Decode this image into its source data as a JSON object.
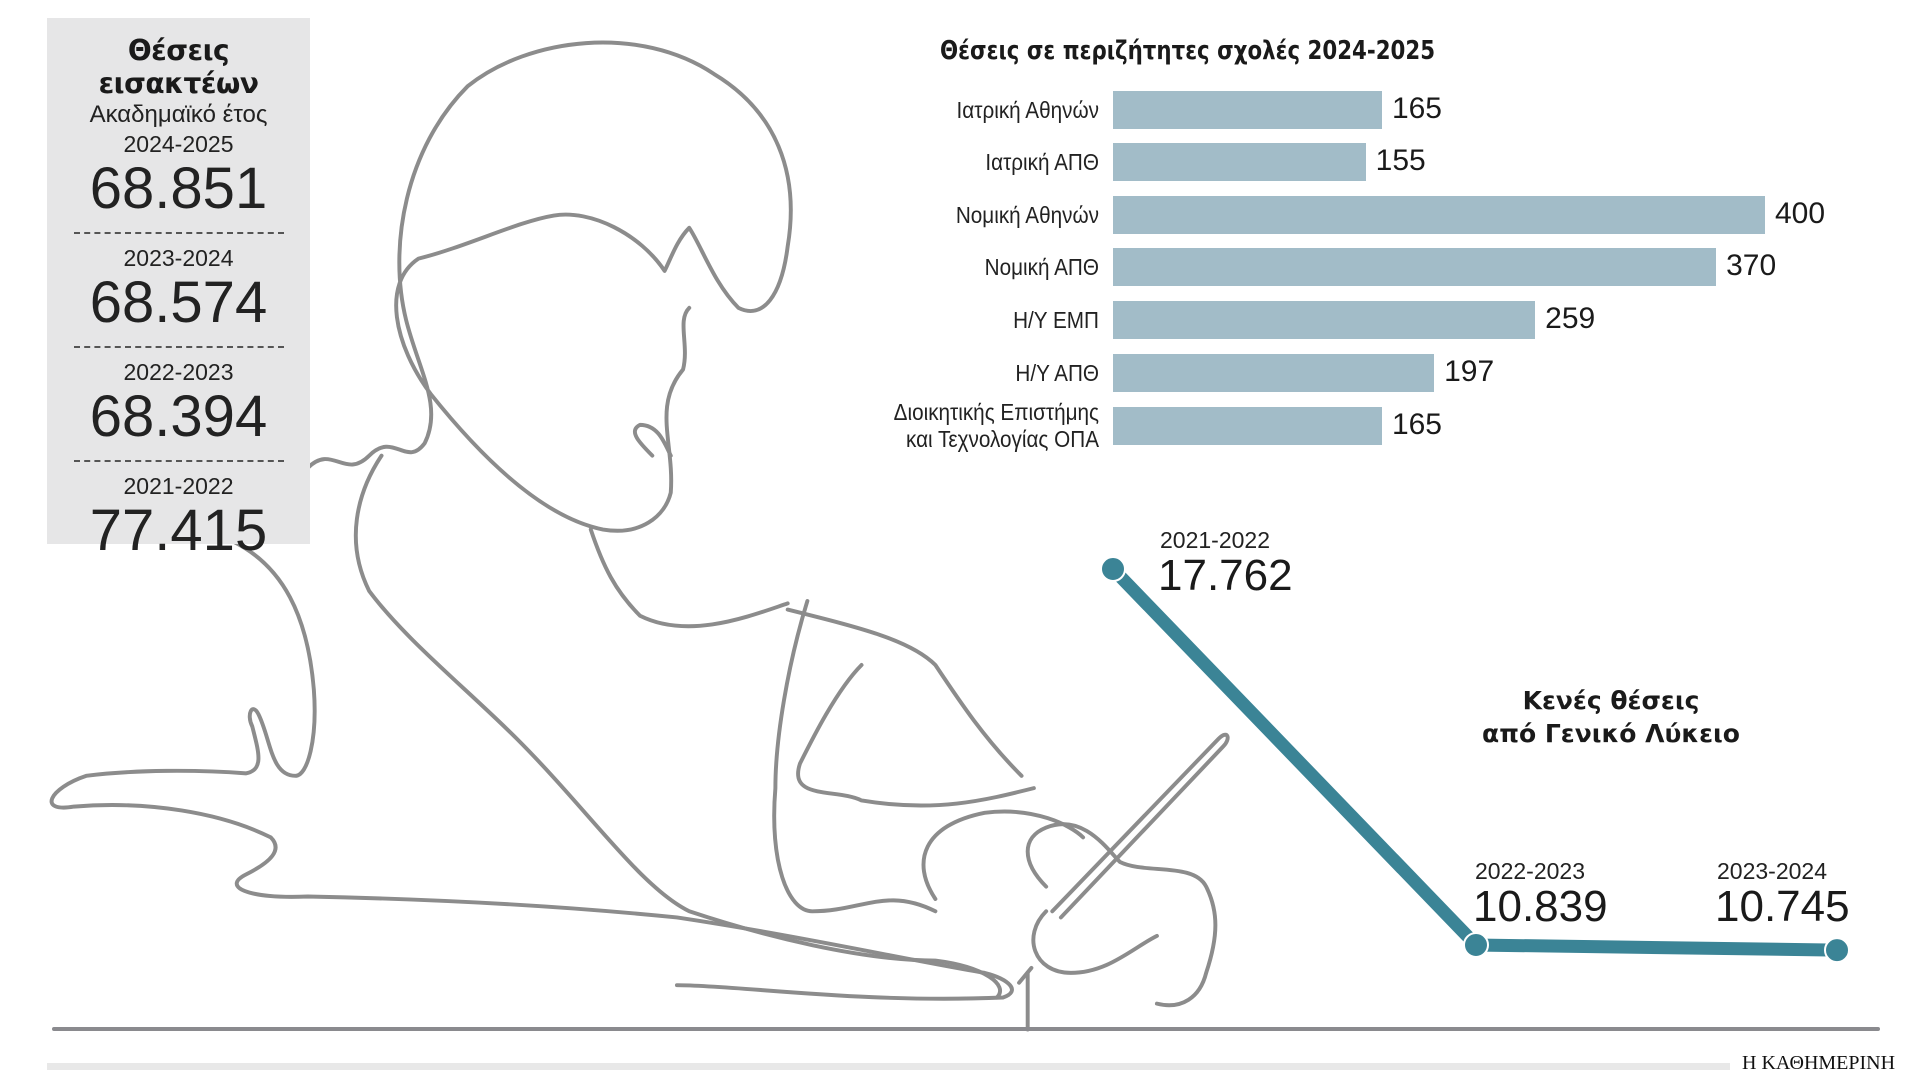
{
  "panel": {
    "title": "Θέσεις εισακτέων",
    "subtitle": "Ακαδημαϊκό έτος",
    "entries": [
      {
        "year": "2024-2025",
        "value": "68.851"
      },
      {
        "year": "2023-2024",
        "value": "68.574"
      },
      {
        "year": "2022-2023",
        "value": "68.394"
      },
      {
        "year": "2021-2022",
        "value": "77.415"
      }
    ]
  },
  "chart_data": [
    {
      "type": "bar",
      "orientation": "horizontal",
      "title": "Θέσεις σε περιζήτητες σχολές 2024-2025",
      "categories": [
        "Ιατρική Αθηνών",
        "Ιατρική ΑΠΘ",
        "Νομική Αθηνών",
        "Νομική ΑΠΘ",
        "Η/Υ ΕΜΠ",
        "Η/Υ ΑΠΘ",
        "Διοικητικής Επιστήμης και Τεχνολογίας ΟΠΑ"
      ],
      "values": [
        165,
        155,
        400,
        370,
        259,
        197,
        165
      ],
      "value_labels": [
        "165",
        "155",
        "400",
        "370",
        "259",
        "197",
        "165"
      ],
      "color": "#a2bcc8",
      "xlim": [
        0,
        400
      ]
    },
    {
      "type": "line",
      "title": "Κενές θέσεις από Γενικό Λύκειο",
      "title_lines": [
        "Κενές θέσεις",
        "από Γενικό Λύκειο"
      ],
      "categories": [
        "2021-2022",
        "2022-2023",
        "2023-2024"
      ],
      "values": [
        17762,
        10839,
        10745
      ],
      "value_labels": [
        "17.762",
        "10.839",
        "10.745"
      ],
      "color": "#3b8496"
    }
  ],
  "footer": {
    "brand": "Η ΚΑΘΗΜΕΡΙΝΗ"
  }
}
